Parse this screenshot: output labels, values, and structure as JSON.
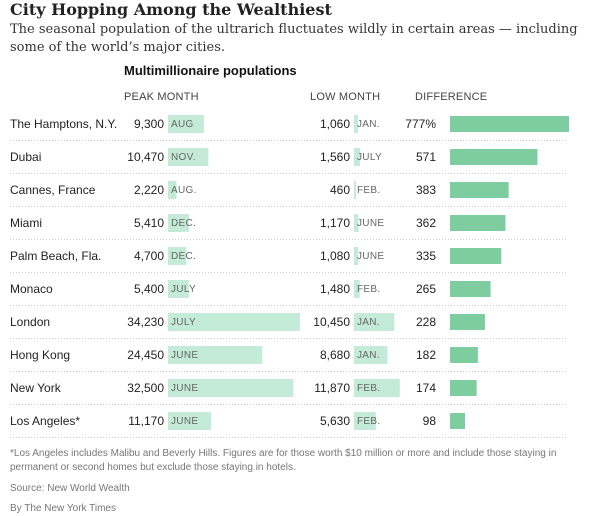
{
  "header": {
    "title": "City Hopping Among the Wealthiest",
    "subtitle": "The seasonal population of the ultrarich fluctuates wildly in certain areas — including some of the world’s major cities."
  },
  "chart_data": {
    "type": "table",
    "title": "Multimillionaire populations",
    "columns": [
      "PEAK MONTH",
      "LOW MONTH",
      "DIFFERENCE"
    ],
    "rows": [
      {
        "city": "The Hamptons, N.Y.",
        "peak": 9300,
        "peak_label": "9,300",
        "peak_month": "AUG",
        "low": 1060,
        "low_label": "1,060",
        "low_month": "JAN.",
        "difference": 777,
        "difference_label": "777%"
      },
      {
        "city": "Dubai",
        "peak": 10470,
        "peak_label": "10,470",
        "peak_month": "NOV.",
        "low": 1560,
        "low_label": "1,560",
        "low_month": "JULY",
        "difference": 571,
        "difference_label": "571"
      },
      {
        "city": "Cannes, France",
        "peak": 2220,
        "peak_label": "2,220",
        "peak_month": "AUG.",
        "low": 460,
        "low_label": "460",
        "low_month": "FEB.",
        "difference": 383,
        "difference_label": "383"
      },
      {
        "city": "Miami",
        "peak": 5410,
        "peak_label": "5,410",
        "peak_month": "DEC.",
        "low": 1170,
        "low_label": "1,170",
        "low_month": "JUNE",
        "difference": 362,
        "difference_label": "362"
      },
      {
        "city": "Palm Beach, Fla.",
        "peak": 4700,
        "peak_label": "4,700",
        "peak_month": "DEC.",
        "low": 1080,
        "low_label": "1,080",
        "low_month": "JUNE",
        "difference": 335,
        "difference_label": "335"
      },
      {
        "city": "Monaco",
        "peak": 5400,
        "peak_label": "5,400",
        "peak_month": "JULY",
        "low": 1480,
        "low_label": "1,480",
        "low_month": "FEB.",
        "difference": 265,
        "difference_label": "265"
      },
      {
        "city": "London",
        "peak": 34230,
        "peak_label": "34,230",
        "peak_month": "JULY",
        "low": 10450,
        "low_label": "10,450",
        "low_month": "JAN.",
        "difference": 228,
        "difference_label": "228"
      },
      {
        "city": "Hong Kong",
        "peak": 24450,
        "peak_label": "24,450",
        "peak_month": "JUNE",
        "low": 8680,
        "low_label": "8,680",
        "low_month": "JAN.",
        "difference": 182,
        "difference_label": "182"
      },
      {
        "city": "New York",
        "peak": 32500,
        "peak_label": "32,500",
        "peak_month": "JUNE",
        "low": 11870,
        "low_label": "11,870",
        "low_month": "FEB.",
        "difference": 174,
        "difference_label": "174"
      },
      {
        "city": "Los Angeles*",
        "peak": 11170,
        "peak_label": "11,170",
        "peak_month": "JUNE",
        "low": 5630,
        "low_label": "5,630",
        "low_month": "FEB.",
        "difference": 98,
        "difference_label": "98"
      }
    ],
    "colors": {
      "population_bar": "#c4ead8",
      "difference_bar": "#7ecda0",
      "divider": "#cccccc"
    }
  },
  "footer": {
    "note": "*Los Angeles includes Malibu and Beverly Hills. Figures are for those worth $10 million or more and include those staying in permanent or second homes but exclude those staying in hotels.",
    "source": "Source: New World Wealth",
    "credit": "By The New York Times"
  }
}
